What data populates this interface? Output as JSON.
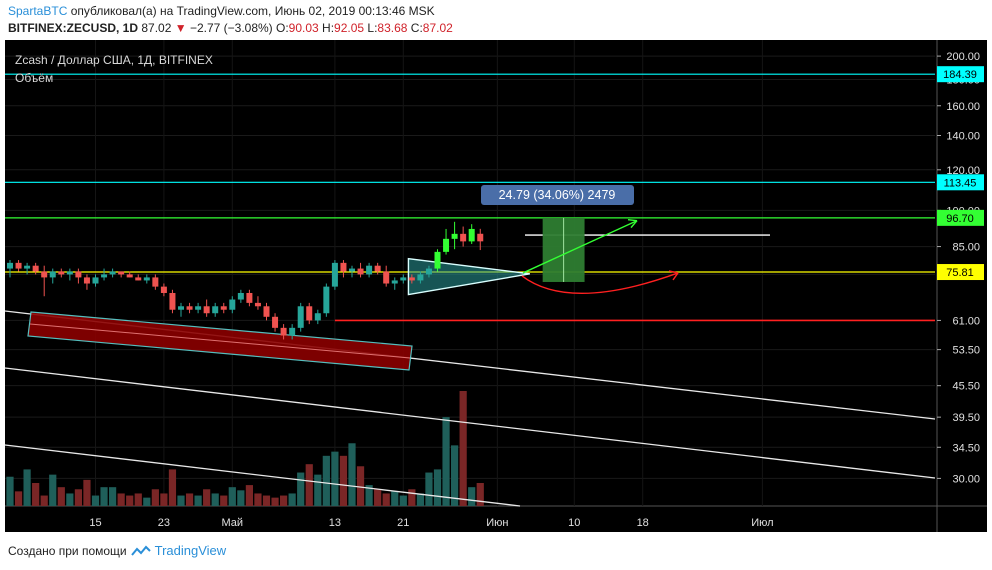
{
  "header": {
    "user": "SpartaBTC",
    "published": " опубликовал(а) на TradingView.com, Июнь 02, 2019 00:13:46 MSK",
    "symbol": "BITFINEX:ZECUSD, 1D",
    "price": " 87.02 ",
    "change_arrow": "▼",
    "change": " −2.77 (−3.08%) ",
    "ohlc": {
      "o_label": "O:",
      "o": "90.03",
      "h_label": " H:",
      "h": "92.05",
      "l_label": " L:",
      "l": "83.68",
      "c_label": " C:",
      "c": "87.02"
    }
  },
  "legend": {
    "title": "Zcash / Доллар США, 1Д, BITFINEX",
    "volume_label": "Объём"
  },
  "footer": {
    "created_with": "Создано при помощи",
    "brand": "TradingView"
  },
  "colors": {
    "background": "#000000",
    "up": "#26a69a",
    "down": "#ef5350",
    "up_bright": "#33ff33",
    "level_cyan": "#00ffff",
    "level_green": "#33ff33",
    "level_yellow": "#ffff00",
    "level_red": "#ff2020",
    "measure_box": "#2e7d32"
  },
  "chart_data": {
    "type": "candlestick",
    "title": "Zcash / Доллар США, 1Д, BITFINEX",
    "scale": "log",
    "ylim": [
      26.5,
      215
    ],
    "y_ticks": [
      200,
      180,
      160,
      140,
      120,
      100,
      85,
      75,
      61,
      53.5,
      45.5,
      39.5,
      34.5,
      30
    ],
    "y_tick_labels": [
      "200.00",
      "180.00",
      "160.00",
      "140.00",
      "120.00",
      "100.00",
      "85.00",
      "75.00",
      "61.00",
      "53.50",
      "45.50",
      "39.50",
      "34.50",
      "30.00"
    ],
    "x_ticks": [
      {
        "index": 10,
        "label": "15"
      },
      {
        "index": 18,
        "label": "23"
      },
      {
        "index": 26,
        "label": "Май"
      },
      {
        "index": 38,
        "label": "13"
      },
      {
        "index": 46,
        "label": "21"
      },
      {
        "index": 57,
        "label": "Июн"
      },
      {
        "index": 66,
        "label": "10"
      },
      {
        "index": 74,
        "label": "18"
      },
      {
        "index": 88,
        "label": "Июл"
      }
    ],
    "price_labels": [
      {
        "value": 184.39,
        "label": "184.39",
        "color": "#00ffff"
      },
      {
        "value": 113.45,
        "label": "113.45",
        "color": "#00ffff"
      },
      {
        "value": 96.7,
        "label": "96.70",
        "color": "#33ff33"
      },
      {
        "value": 75.81,
        "label": "75.81",
        "color": "#ffff00"
      }
    ],
    "candles": [
      {
        "o": 77,
        "h": 80,
        "l": 74,
        "c": 79
      },
      {
        "o": 79,
        "h": 80,
        "l": 76,
        "c": 77
      },
      {
        "o": 77,
        "h": 79,
        "l": 75,
        "c": 78
      },
      {
        "o": 78,
        "h": 79,
        "l": 75,
        "c": 76
      },
      {
        "o": 76,
        "h": 78,
        "l": 68,
        "c": 74
      },
      {
        "o": 74,
        "h": 77,
        "l": 72,
        "c": 76
      },
      {
        "o": 76,
        "h": 77,
        "l": 74,
        "c": 75
      },
      {
        "o": 75,
        "h": 77,
        "l": 73,
        "c": 76
      },
      {
        "o": 76,
        "h": 77,
        "l": 72,
        "c": 74
      },
      {
        "o": 74,
        "h": 75,
        "l": 70,
        "c": 72
      },
      {
        "o": 72,
        "h": 75,
        "l": 71,
        "c": 74
      },
      {
        "o": 74,
        "h": 77,
        "l": 73,
        "c": 75
      },
      {
        "o": 75,
        "h": 77,
        "l": 74,
        "c": 76
      },
      {
        "o": 76,
        "h": 76,
        "l": 74,
        "c": 75
      },
      {
        "o": 75,
        "h": 76,
        "l": 74,
        "c": 74
      },
      {
        "o": 74,
        "h": 75,
        "l": 73,
        "c": 73
      },
      {
        "o": 73,
        "h": 75,
        "l": 72,
        "c": 74
      },
      {
        "o": 74,
        "h": 75,
        "l": 70,
        "c": 71
      },
      {
        "o": 71,
        "h": 72,
        "l": 68,
        "c": 69
      },
      {
        "o": 69,
        "h": 70,
        "l": 63,
        "c": 64
      },
      {
        "o": 64,
        "h": 66,
        "l": 62,
        "c": 65
      },
      {
        "o": 65,
        "h": 66,
        "l": 63,
        "c": 64
      },
      {
        "o": 64,
        "h": 66,
        "l": 63,
        "c": 65
      },
      {
        "o": 65,
        "h": 67,
        "l": 62,
        "c": 63
      },
      {
        "o": 63,
        "h": 66,
        "l": 62,
        "c": 65
      },
      {
        "o": 65,
        "h": 66,
        "l": 63,
        "c": 64
      },
      {
        "o": 64,
        "h": 68,
        "l": 63,
        "c": 67
      },
      {
        "o": 67,
        "h": 70,
        "l": 66,
        "c": 69
      },
      {
        "o": 69,
        "h": 70,
        "l": 65,
        "c": 66
      },
      {
        "o": 66,
        "h": 68,
        "l": 64,
        "c": 65
      },
      {
        "o": 65,
        "h": 66,
        "l": 61,
        "c": 62
      },
      {
        "o": 62,
        "h": 63,
        "l": 58,
        "c": 59
      },
      {
        "o": 59,
        "h": 60,
        "l": 56,
        "c": 57
      },
      {
        "o": 57,
        "h": 60,
        "l": 56,
        "c": 59
      },
      {
        "o": 59,
        "h": 66,
        "l": 58,
        "c": 65
      },
      {
        "o": 65,
        "h": 66,
        "l": 60,
        "c": 61
      },
      {
        "o": 61,
        "h": 64,
        "l": 60,
        "c": 63
      },
      {
        "o": 63,
        "h": 72,
        "l": 62,
        "c": 71
      },
      {
        "o": 71,
        "h": 80,
        "l": 70,
        "c": 79
      },
      {
        "o": 79,
        "h": 80,
        "l": 74,
        "c": 76
      },
      {
        "o": 76,
        "h": 78,
        "l": 74,
        "c": 77
      },
      {
        "o": 77,
        "h": 79,
        "l": 74,
        "c": 75
      },
      {
        "o": 75,
        "h": 79,
        "l": 74,
        "c": 78
      },
      {
        "o": 78,
        "h": 79,
        "l": 75,
        "c": 76
      },
      {
        "o": 76,
        "h": 78,
        "l": 71,
        "c": 72
      },
      {
        "o": 72,
        "h": 74,
        "l": 70,
        "c": 73
      },
      {
        "o": 73,
        "h": 75,
        "l": 72,
        "c": 74
      },
      {
        "o": 74,
        "h": 75,
        "l": 72,
        "c": 73
      },
      {
        "o": 73,
        "h": 76,
        "l": 72,
        "c": 75
      },
      {
        "o": 75,
        "h": 78,
        "l": 74,
        "c": 77
      },
      {
        "o": 77,
        "h": 84,
        "l": 76,
        "c": 83
      },
      {
        "o": 83,
        "h": 92,
        "l": 82,
        "c": 88
      },
      {
        "o": 88,
        "h": 95,
        "l": 84,
        "c": 90
      },
      {
        "o": 90,
        "h": 93,
        "l": 85,
        "c": 87
      },
      {
        "o": 87,
        "h": 94,
        "l": 86,
        "c": 92
      },
      {
        "o": 90.03,
        "h": 92.05,
        "l": 83.68,
        "c": 87.02
      }
    ],
    "volumes": [
      28,
      14,
      35,
      22,
      10,
      30,
      18,
      12,
      16,
      25,
      10,
      18,
      18,
      12,
      10,
      12,
      8,
      16,
      12,
      35,
      10,
      12,
      10,
      16,
      12,
      10,
      18,
      15,
      20,
      12,
      10,
      8,
      10,
      12,
      32,
      40,
      30,
      48,
      52,
      48,
      60,
      38,
      20,
      16,
      12,
      14,
      10,
      16,
      12,
      32,
      35,
      85,
      58,
      110,
      18,
      22
    ],
    "fib_levels": [
      {
        "value": 184.39,
        "color": "#00ffff"
      },
      {
        "value": 113.45,
        "color": "#00ffff"
      },
      {
        "value": 96.7,
        "color": "#33ff33"
      },
      {
        "value": 75.81,
        "color": "#ffff00"
      },
      {
        "value": 61,
        "color": "#ff2020"
      }
    ],
    "measure": {
      "label": "24.79 (34.06%) 2479"
    }
  }
}
